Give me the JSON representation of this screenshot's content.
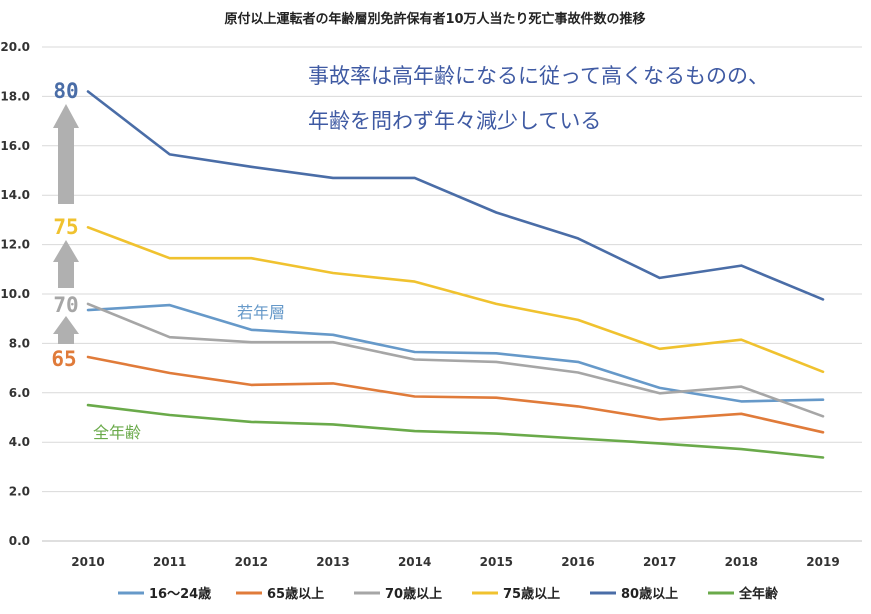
{
  "chart_data": {
    "type": "line",
    "title": "原付以上運転者の年齢層別免許保有者10万人当たり死亡事故件数の推移",
    "xlabel": "",
    "ylabel": "",
    "ylim": [
      0,
      20
    ],
    "yticks": [
      "0.0",
      "2.0",
      "4.0",
      "6.0",
      "8.0",
      "10.0",
      "12.0",
      "14.0",
      "16.0",
      "18.0",
      "20.0"
    ],
    "grid": true,
    "legend_position": "bottom",
    "categories": [
      "2010",
      "2011",
      "2012",
      "2013",
      "2014",
      "2015",
      "2016",
      "2017",
      "2018",
      "2019"
    ],
    "series": [
      {
        "name": "16〜24歳",
        "color": "#6699c9",
        "values": [
          9.35,
          9.55,
          8.55,
          8.35,
          7.65,
          7.6,
          7.25,
          6.2,
          5.65,
          5.72
        ]
      },
      {
        "name": "65歳以上",
        "color": "#e07b3a",
        "values": [
          7.45,
          6.8,
          6.32,
          6.38,
          5.85,
          5.8,
          5.45,
          4.92,
          5.15,
          4.4
        ]
      },
      {
        "name": "70歳以上",
        "color": "#a6a6a6",
        "values": [
          9.6,
          8.25,
          8.05,
          8.05,
          7.35,
          7.25,
          6.82,
          5.98,
          6.25,
          5.05
        ]
      },
      {
        "name": "75歳以上",
        "color": "#f0c22f",
        "values": [
          12.7,
          11.45,
          11.45,
          10.85,
          10.5,
          9.6,
          8.95,
          7.78,
          8.15,
          6.85
        ]
      },
      {
        "name": "80歳以上",
        "color": "#4a6da7",
        "values": [
          18.2,
          15.65,
          15.15,
          14.7,
          14.7,
          13.3,
          12.25,
          10.65,
          11.15,
          9.78
        ]
      },
      {
        "name": "全年齢",
        "color": "#6aaa4a",
        "values": [
          5.5,
          5.1,
          4.82,
          4.72,
          4.45,
          4.35,
          4.15,
          3.95,
          3.72,
          3.38
        ]
      }
    ],
    "annotations": {
      "message_line1": "事故率は高年齢になるに従って高くなるものの、",
      "message_line2": "年齢を問わず年々減少している",
      "young_label": "若年層",
      "all_ages_label": "全年齢",
      "age_80": "80",
      "age_75": "75",
      "age_70": "70",
      "age_65": "65"
    }
  }
}
